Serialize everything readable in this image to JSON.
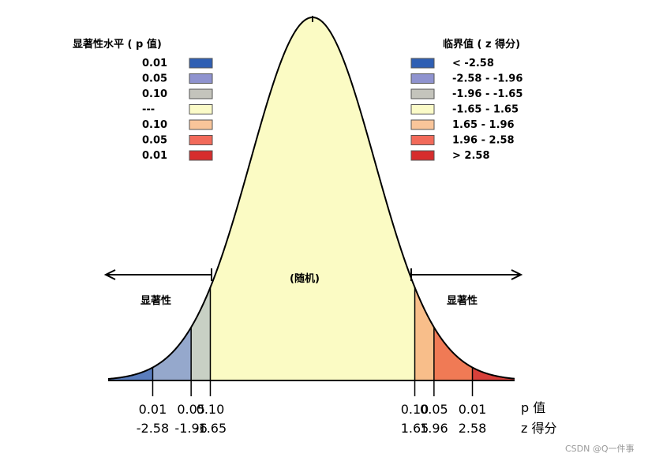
{
  "legend_left": {
    "title": "显著性水平 ( p 值)",
    "items": [
      {
        "label": "0.01",
        "color": "#2f5fb3"
      },
      {
        "label": "0.05",
        "color": "#8f93cf"
      },
      {
        "label": "0.10",
        "color": "#c4c4bc"
      },
      {
        "label": "---",
        "color": "#fbfbc8"
      },
      {
        "label": "0.10",
        "color": "#f9c59a"
      },
      {
        "label": "0.05",
        "color": "#f26a5a"
      },
      {
        "label": "0.01",
        "color": "#d62d2d"
      }
    ]
  },
  "legend_right": {
    "title": "临界值 ( z 得分)",
    "items": [
      {
        "label": "< -2.58"
      },
      {
        "label": "-2.58 - -1.96"
      },
      {
        "label": "-1.96 - -1.65"
      },
      {
        "label": "-1.65 - 1.65"
      },
      {
        "label": " 1.65 - 1.96"
      },
      {
        "label": " 1.96 - 2.58"
      },
      {
        "label": " > 2.58"
      }
    ]
  },
  "center_label": "(随机)",
  "left_label": "显著性",
  "right_label": "显著性",
  "axis": {
    "p_title": "p 值",
    "z_title": "z 得分",
    "ticks": [
      {
        "z": -2.58,
        "p": "0.01",
        "zlabel": "-2.58"
      },
      {
        "z": -1.96,
        "p": "0.05",
        "zlabel": "-1.96"
      },
      {
        "z": -1.65,
        "p": "0.10",
        "zlabel": "-1.65"
      },
      {
        "z": 1.65,
        "p": "0.10",
        "zlabel": "1.65"
      },
      {
        "z": 1.96,
        "p": "0.05",
        "zlabel": "1.96"
      },
      {
        "z": 2.58,
        "p": "0.01",
        "zlabel": "2.58"
      }
    ]
  },
  "curve": {
    "type": "normal",
    "region_colors": {
      "left_001": "#5a7dbd",
      "left_005": "#95a8cc",
      "left_010": "#c8d0c4",
      "center": "#fbfbc4",
      "right_010": "#f8be8a",
      "right_005": "#f07a55",
      "right_001": "#d8403a"
    }
  },
  "watermark": "CSDN @Q一件事"
}
